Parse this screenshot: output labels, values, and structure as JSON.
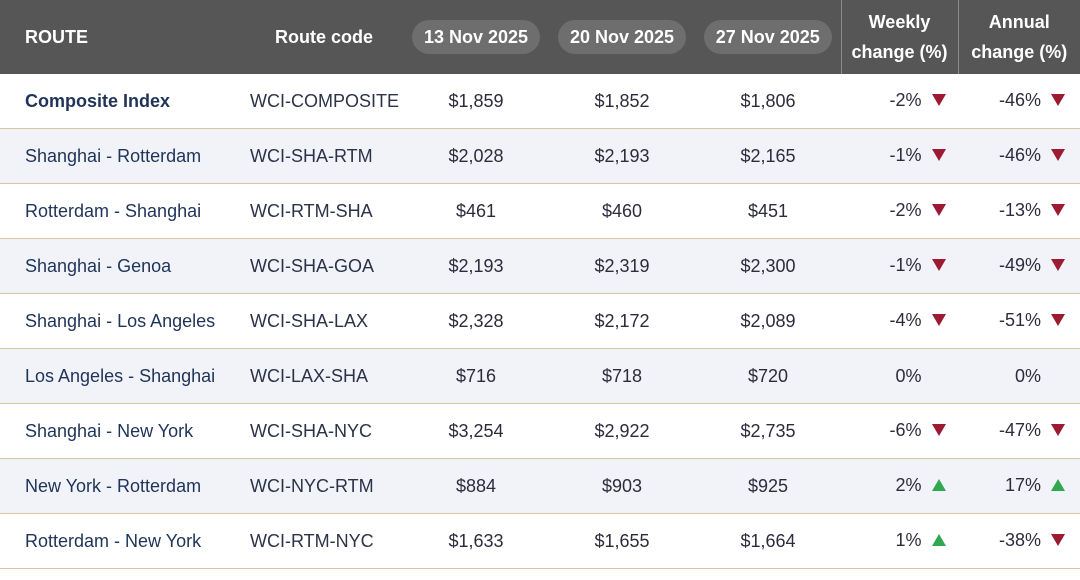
{
  "table": {
    "header": [
      "ROUTE",
      "Route code",
      "13 Nov 2025",
      "20 Nov 2025",
      "27 Nov 2025",
      "Weekly change (%)",
      "Annual change (%)"
    ],
    "rows": [
      {
        "cells": [
          "Composite Index",
          "WCI-COMPOSITE",
          "$1,859",
          "$1,852",
          "$1,806",
          "-2%",
          "-46%"
        ],
        "arrows": [
          "down",
          "down"
        ]
      },
      {
        "cells": [
          "Shanghai - Rotterdam",
          "WCI-SHA-RTM",
          "$2,028",
          "$2,193",
          "$2,165",
          "-1%",
          "-46%"
        ],
        "arrows": [
          "down",
          "down"
        ]
      },
      {
        "cells": [
          "Rotterdam - Shanghai",
          "WCI-RTM-SHA",
          "$461",
          "$460",
          "$451",
          "-2%",
          "-13%"
        ],
        "arrows": [
          "down",
          "down"
        ]
      },
      {
        "cells": [
          "Shanghai - Genoa",
          "WCI-SHA-GOA",
          "$2,193",
          "$2,319",
          "$2,300",
          "-1%",
          "-49%"
        ],
        "arrows": [
          "down",
          "down"
        ]
      },
      {
        "cells": [
          "Shanghai - Los Angeles",
          "WCI-SHA-LAX",
          "$2,328",
          "$2,172",
          "$2,089",
          "-4%",
          "-51%"
        ],
        "arrows": [
          "down",
          "down"
        ]
      },
      {
        "cells": [
          "Los Angeles - Shanghai",
          "WCI-LAX-SHA",
          "$716",
          "$718",
          "$720",
          "0%",
          "0%"
        ],
        "arrows": [
          null,
          null
        ]
      },
      {
        "cells": [
          "Shanghai - New York",
          "WCI-SHA-NYC",
          "$3,254",
          "$2,922",
          "$2,735",
          "-6%",
          "-47%"
        ],
        "arrows": [
          "down",
          "down"
        ]
      },
      {
        "cells": [
          "New York - Rotterdam",
          "WCI-NYC-RTM",
          "$884",
          "$903",
          "$925",
          "2%",
          "17%"
        ],
        "arrows": [
          "up",
          "up"
        ]
      },
      {
        "cells": [
          "Rotterdam - New York",
          "WCI-RTM-NYC",
          "$1,633",
          "$1,655",
          "$1,664",
          "1%",
          "-38%"
        ],
        "arrows": [
          "up",
          "down"
        ]
      }
    ]
  }
}
